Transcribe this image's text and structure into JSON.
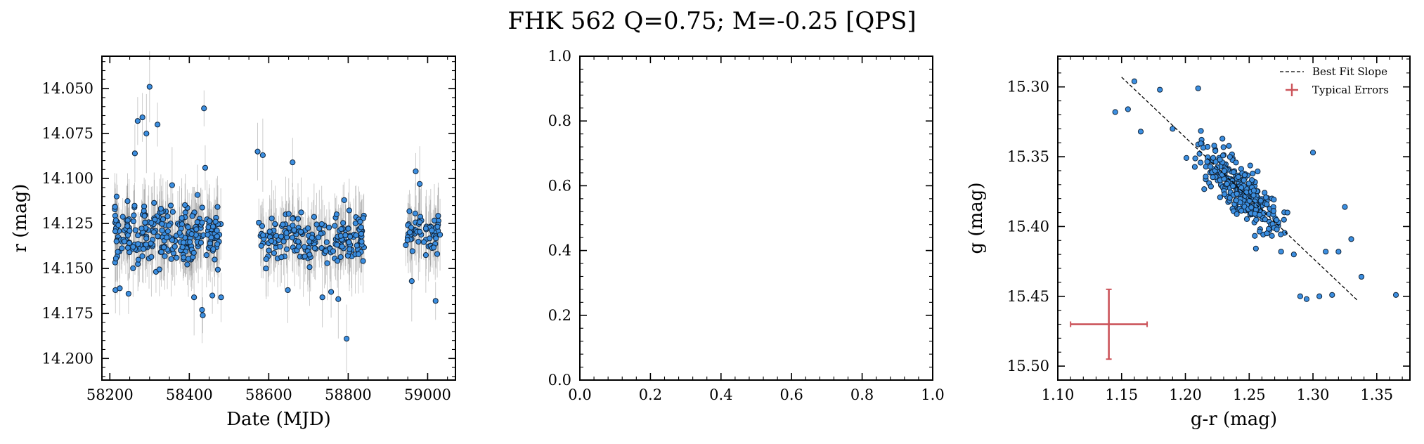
{
  "figure": {
    "title": "FHK 562  Q=0.75; M=-0.25 [QPS]"
  },
  "colors": {
    "marker_fill": "#3b8ee0",
    "marker_edge": "#10243a",
    "errorbar": "#8c8c8c",
    "fit_line": "#000000",
    "typical_error": "#cc555b"
  },
  "chart_data": [
    {
      "type": "scatter",
      "panel": "light-curve",
      "xlabel": "Date (MJD)",
      "ylabel": "r (mag)",
      "xlim": [
        58180,
        59070
      ],
      "ylim": [
        14.212,
        14.032
      ],
      "y_inverted": true,
      "xticks": [
        58200,
        58400,
        58600,
        58800,
        59000
      ],
      "xtick_labels": [
        "58200",
        "58400",
        "58600",
        "58800",
        "59000"
      ],
      "yticks": [
        14.05,
        14.075,
        14.1,
        14.125,
        14.15,
        14.175,
        14.2
      ],
      "ytick_labels": [
        "14.050",
        "14.075",
        "14.100",
        "14.125",
        "14.150",
        "14.175",
        "14.200"
      ],
      "grid": false,
      "typical_y_error": 0.016,
      "seasons": [
        {
          "x_range": [
            58212,
            58480
          ],
          "center": 14.131,
          "spread": 0.018,
          "count": 260
        },
        {
          "x_range": [
            58572,
            58840
          ],
          "center": 14.133,
          "spread": 0.014,
          "count": 190
        },
        {
          "x_range": [
            58945,
            59032
          ],
          "center": 14.13,
          "spread": 0.011,
          "count": 60
        }
      ],
      "points": [
        {
          "x": 58300,
          "y": 14.049
        },
        {
          "x": 58437,
          "y": 14.061
        },
        {
          "x": 58270,
          "y": 14.068
        },
        {
          "x": 58282,
          "y": 14.066
        },
        {
          "x": 58320,
          "y": 14.07
        },
        {
          "x": 58292,
          "y": 14.075
        },
        {
          "x": 58263,
          "y": 14.086
        },
        {
          "x": 58572,
          "y": 14.085
        },
        {
          "x": 58585,
          "y": 14.087
        },
        {
          "x": 58660,
          "y": 14.091
        },
        {
          "x": 58440,
          "y": 14.094
        },
        {
          "x": 58970,
          "y": 14.096
        },
        {
          "x": 58217,
          "y": 14.11
        },
        {
          "x": 58790,
          "y": 14.112
        },
        {
          "x": 58980,
          "y": 14.103
        },
        {
          "x": 58214,
          "y": 14.162
        },
        {
          "x": 58225,
          "y": 14.161
        },
        {
          "x": 58247,
          "y": 14.164
        },
        {
          "x": 58412,
          "y": 14.166
        },
        {
          "x": 58458,
          "y": 14.165
        },
        {
          "x": 58480,
          "y": 14.166
        },
        {
          "x": 58432,
          "y": 14.173
        },
        {
          "x": 58434,
          "y": 14.176
        },
        {
          "x": 58593,
          "y": 14.15
        },
        {
          "x": 58648,
          "y": 14.162
        },
        {
          "x": 58735,
          "y": 14.166
        },
        {
          "x": 58775,
          "y": 14.167
        },
        {
          "x": 58757,
          "y": 14.163
        },
        {
          "x": 58796,
          "y": 14.189
        },
        {
          "x": 58960,
          "y": 14.157
        },
        {
          "x": 59020,
          "y": 14.168
        },
        {
          "x": 58838,
          "y": 14.122
        },
        {
          "x": 58830,
          "y": 14.124
        },
        {
          "x": 58945,
          "y": 14.137
        }
      ]
    },
    {
      "type": "scatter",
      "panel": "empty",
      "xlim": [
        0,
        1
      ],
      "ylim": [
        0,
        1
      ],
      "xticks": [
        0,
        0.2,
        0.4,
        0.6,
        0.8,
        1
      ],
      "xtick_labels": [
        "0.0",
        "0.2",
        "0.4",
        "0.6",
        "0.8",
        "1.0"
      ],
      "yticks": [
        0,
        0.2,
        0.4,
        0.6,
        0.8,
        1
      ],
      "ytick_labels": [
        "0.0",
        "0.2",
        "0.4",
        "0.6",
        "0.8",
        "1.0"
      ],
      "grid": false
    },
    {
      "type": "scatter",
      "panel": "color-magnitude",
      "xlabel": "g-r (mag)",
      "ylabel": "g (mag)",
      "xlim": [
        1.1,
        1.376
      ],
      "ylim": [
        15.51,
        15.278
      ],
      "y_inverted": true,
      "xticks": [
        1.1,
        1.15,
        1.2,
        1.25,
        1.3,
        1.35
      ],
      "xtick_labels": [
        "1.10",
        "1.15",
        "1.20",
        "1.25",
        "1.30",
        "1.35"
      ],
      "yticks": [
        15.3,
        15.35,
        15.4,
        15.45,
        15.5
      ],
      "ytick_labels": [
        "15.30",
        "15.35",
        "15.40",
        "15.45",
        "15.50"
      ],
      "grid": false,
      "legend_position": "top-right",
      "legend": [
        "Best Fit Slope",
        "Typical Errors"
      ],
      "fit_line": {
        "x": [
          1.15,
          1.335
        ],
        "y": [
          15.293,
          15.453
        ]
      },
      "typical_errors": {
        "x": 1.14,
        "y": 15.47,
        "xerr": 0.03,
        "yerr": 0.025
      },
      "cloud": {
        "center_x": 1.245,
        "center_y": 15.375,
        "count": 300
      },
      "points": [
        {
          "x": 1.16,
          "y": 15.296
        },
        {
          "x": 1.18,
          "y": 15.302
        },
        {
          "x": 1.21,
          "y": 15.301
        },
        {
          "x": 1.145,
          "y": 15.318
        },
        {
          "x": 1.155,
          "y": 15.316
        },
        {
          "x": 1.165,
          "y": 15.332
        },
        {
          "x": 1.19,
          "y": 15.33
        },
        {
          "x": 1.365,
          "y": 15.449
        },
        {
          "x": 1.338,
          "y": 15.436
        },
        {
          "x": 1.29,
          "y": 15.45
        },
        {
          "x": 1.295,
          "y": 15.452
        },
        {
          "x": 1.305,
          "y": 15.45
        },
        {
          "x": 1.315,
          "y": 15.449
        },
        {
          "x": 1.325,
          "y": 15.386
        },
        {
          "x": 1.33,
          "y": 15.409
        },
        {
          "x": 1.31,
          "y": 15.418
        },
        {
          "x": 1.3,
          "y": 15.347
        },
        {
          "x": 1.32,
          "y": 15.418
        },
        {
          "x": 1.285,
          "y": 15.42
        },
        {
          "x": 1.275,
          "y": 15.418
        },
        {
          "x": 1.28,
          "y": 15.39
        }
      ]
    }
  ]
}
